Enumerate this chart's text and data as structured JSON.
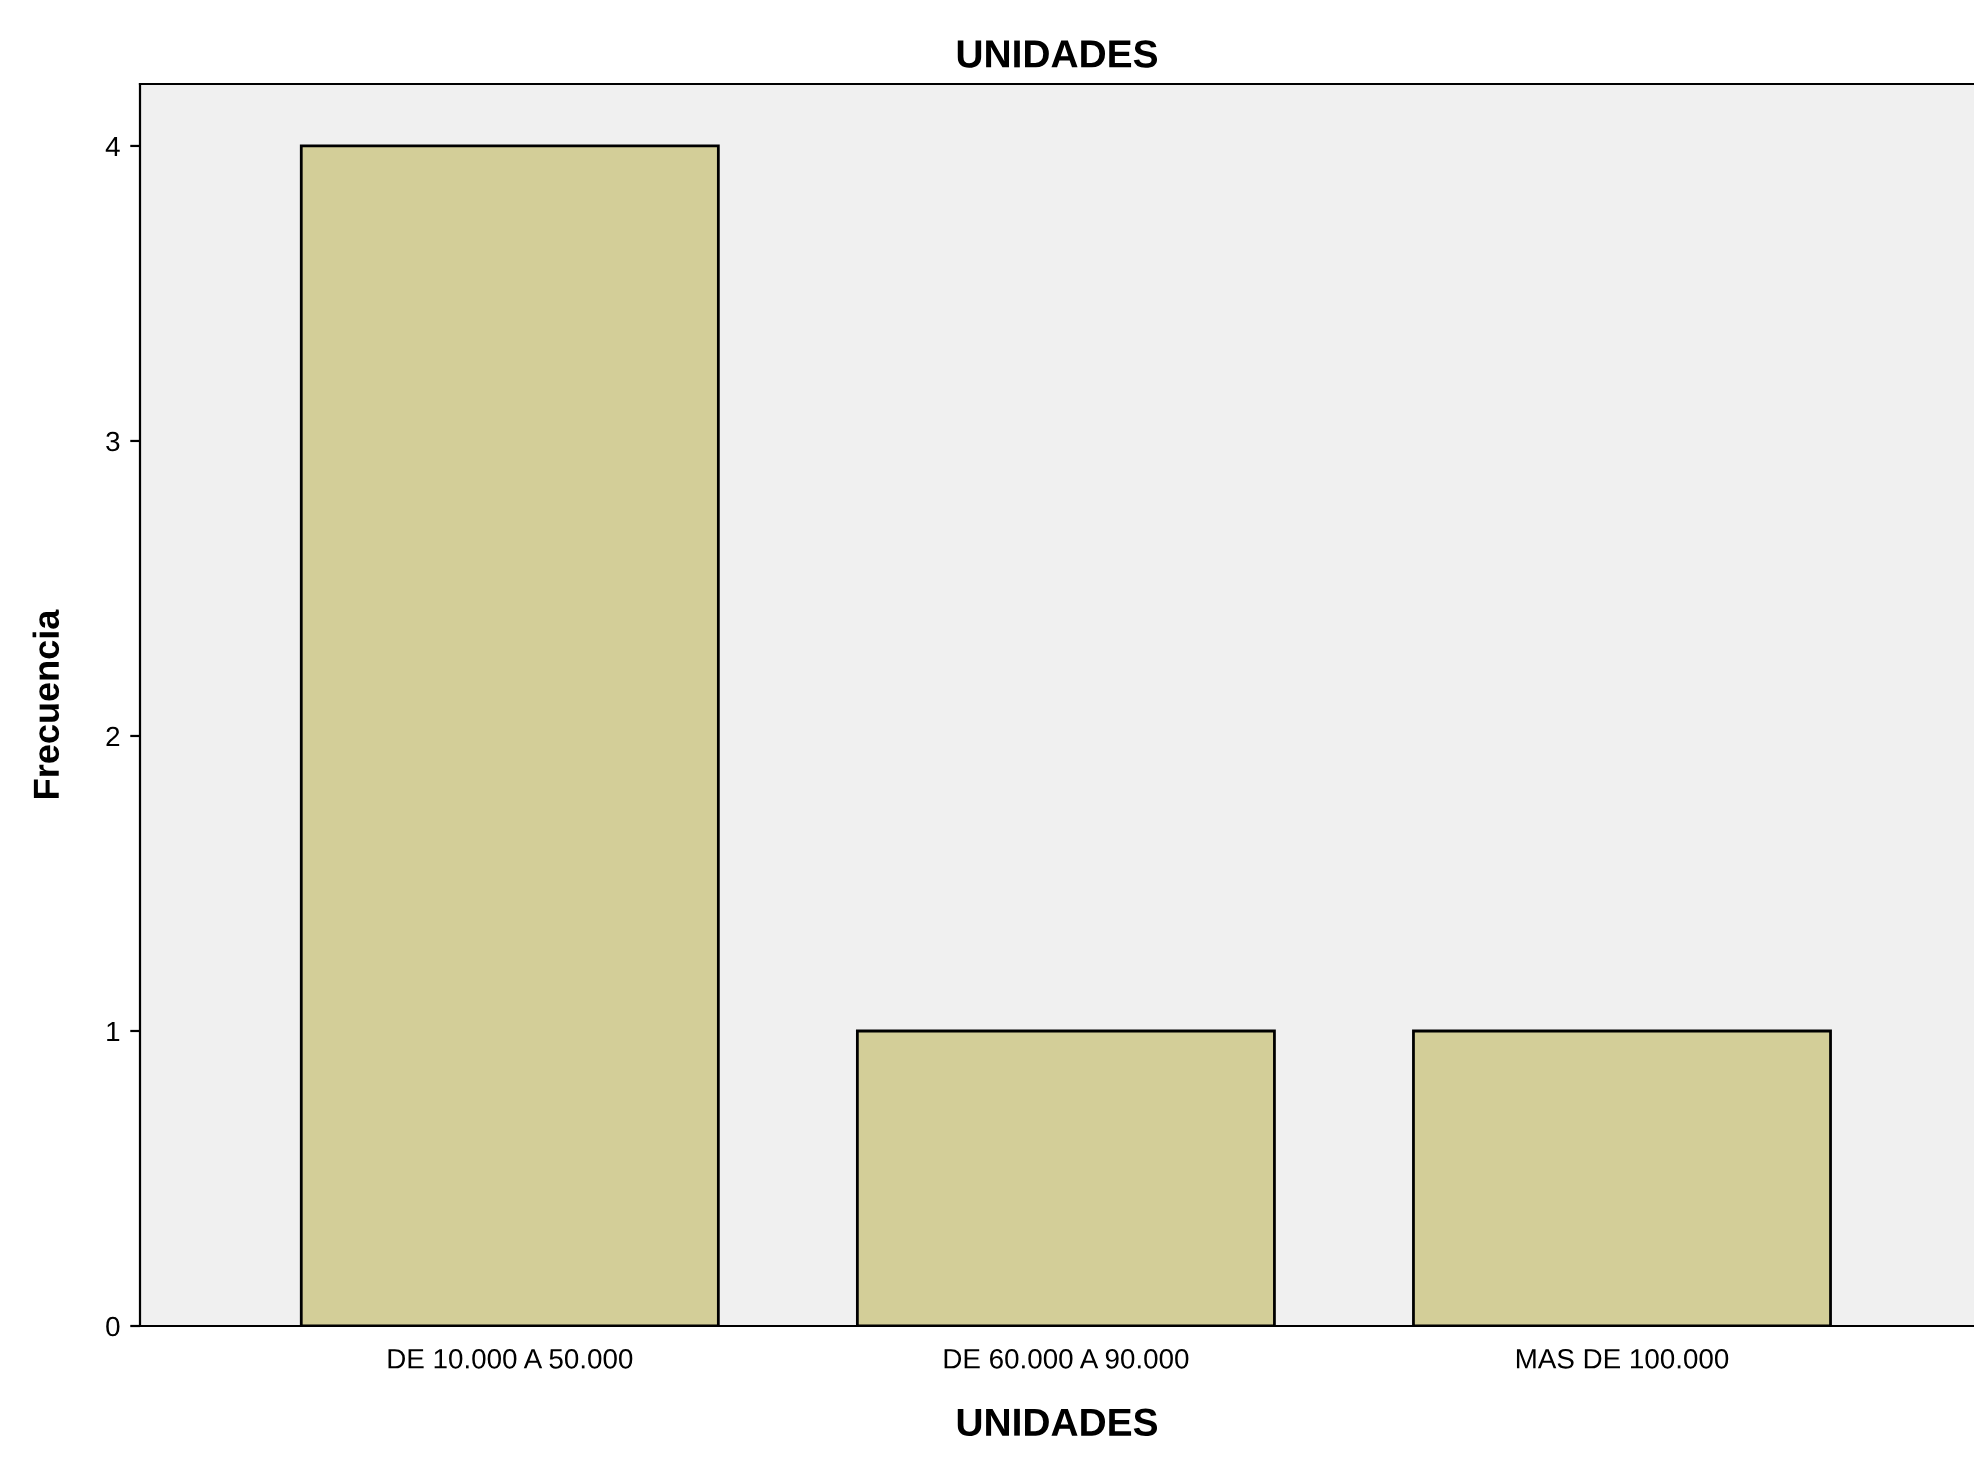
{
  "chart_data": {
    "type": "bar",
    "title": "UNIDADES",
    "xlabel": "UNIDADES",
    "ylabel": "Frecuencia",
    "categories": [
      "DE 10.000 A 50.000",
      "DE 60.000 A 90.000",
      "MAS DE 100.000"
    ],
    "values": [
      4,
      1,
      1
    ],
    "color": "#d3ce98",
    "ylim": [
      0,
      4.21
    ],
    "yticks": [
      0,
      1,
      2,
      3,
      4
    ],
    "grid": false
  }
}
